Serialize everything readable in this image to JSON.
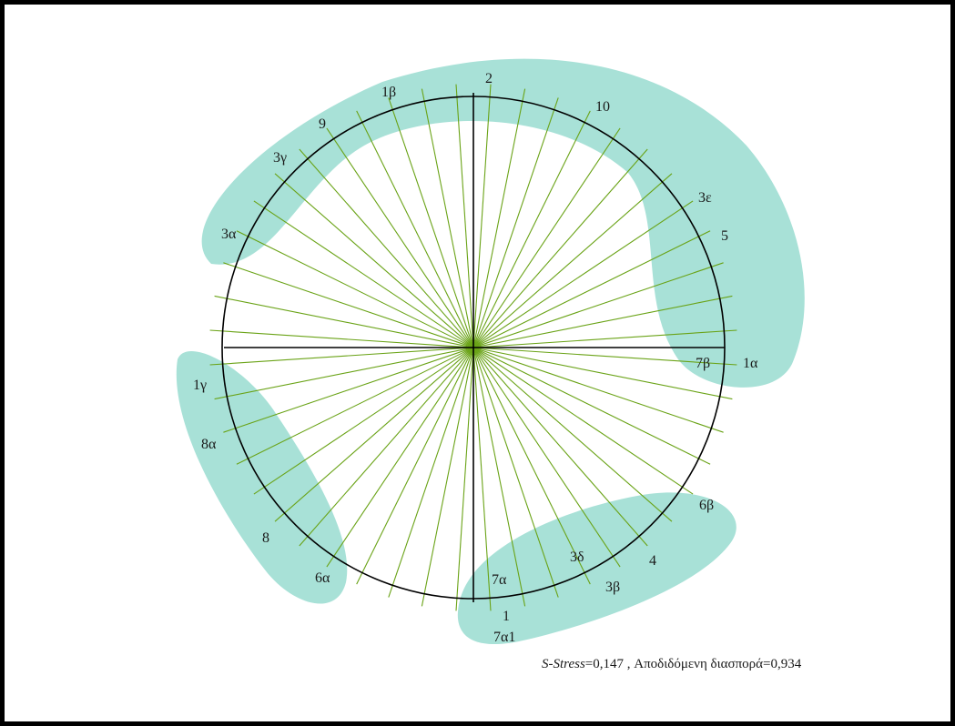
{
  "colors": {
    "frame": "#000000",
    "circle": "#000000",
    "axes": "#000000",
    "spokes": "#6aa317",
    "clusters": "#8fd8cc",
    "text": "#1a1a1a"
  },
  "points": [
    {
      "label": "2",
      "angle_deg": 93
    },
    {
      "label": "1β",
      "angle_deg": 106
    },
    {
      "label": "9",
      "angle_deg": 122
    },
    {
      "label": "3γ",
      "angle_deg": 134
    },
    {
      "label": "3α",
      "angle_deg": 155
    },
    {
      "label": "10",
      "angle_deg": 66
    },
    {
      "label": "3ε",
      "angle_deg": 33
    },
    {
      "label": "5",
      "angle_deg": 24
    },
    {
      "label": "7β",
      "angle_deg": -4
    },
    {
      "label": "1α",
      "angle_deg": 0
    },
    {
      "label": "1γ",
      "angle_deg": 192
    },
    {
      "label": "8α",
      "angle_deg": 207
    },
    {
      "label": "8",
      "angle_deg": 222
    },
    {
      "label": "6α",
      "angle_deg": 243
    },
    {
      "label": "7α",
      "angle_deg": 263
    },
    {
      "label": "1",
      "angle_deg": 268
    },
    {
      "label": "7α1",
      "angle_deg": 272
    },
    {
      "label": "3δ",
      "angle_deg": 289
    },
    {
      "label": "3β",
      "angle_deg": 277
    },
    {
      "label": "4",
      "angle_deg": 298
    },
    {
      "label": "6β",
      "angle_deg": 311
    }
  ],
  "caption": {
    "stat_label": "S-Stress",
    "stat_value": "=0,147 ,  Αποδιδόμενη διασπορά=0,934"
  }
}
